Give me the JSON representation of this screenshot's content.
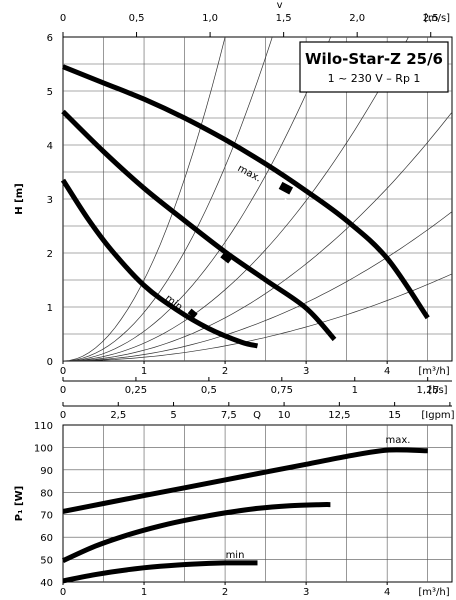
{
  "chart_data": [
    {
      "type": "line",
      "title": "Wilo-Star-Z 25/6",
      "subtitle": "1 ~ 230 V – Rp 1",
      "xlabel": "Q",
      "ylabel": "H [m]",
      "xlim": [
        0,
        4.8
      ],
      "ylim": [
        0,
        6
      ],
      "grid": true,
      "x_unit_label": "[m³/h]",
      "xticks": [
        "0",
        "1",
        "2",
        "3",
        "4"
      ],
      "yticks": [
        "0",
        "1",
        "2",
        "3",
        "4",
        "5",
        "6"
      ],
      "top_axis": {
        "symbol": "v",
        "unit_label": "[m/s]",
        "tick_labels": [
          "0",
          "0,5",
          "1,0",
          "1,5",
          "2,0",
          "2,5"
        ],
        "tick_values": [
          0,
          0.5,
          1.0,
          1.5,
          2.0,
          2.5
        ],
        "m3h_per_unit": 1.815
      },
      "secondary_axes": [
        {
          "unit_label": "[l/s]",
          "tick_labels": [
            "0",
            "0,25",
            "0,5",
            "0,75",
            "1",
            "1,25"
          ],
          "tick_values": [
            0,
            0.25,
            0.5,
            0.75,
            1,
            1.25
          ],
          "m3h_per_unit": 3.6
        },
        {
          "unit_label": "[Igpm]",
          "tick_labels": [
            "0",
            "2,5",
            "5",
            "7,5",
            "10",
            "12,5",
            "15",
            "17,5"
          ],
          "tick_values": [
            0,
            2.5,
            5,
            7.5,
            10,
            12.5,
            15,
            17.5
          ],
          "m3h_per_unit": 0.2728
        }
      ],
      "series": [
        {
          "name": "max.",
          "x": [
            0,
            0.5,
            1,
            1.5,
            2,
            2.5,
            3,
            3.5,
            4,
            4.5
          ],
          "y": [
            5.45,
            5.15,
            4.85,
            4.5,
            4.1,
            3.65,
            3.15,
            2.6,
            1.9,
            0.8
          ]
        },
        {
          "name": "",
          "x": [
            0,
            0.5,
            1,
            1.5,
            2,
            2.5,
            3,
            3.35
          ],
          "y": [
            4.62,
            3.88,
            3.2,
            2.6,
            2.02,
            1.5,
            0.98,
            0.4
          ]
        },
        {
          "name": "min",
          "x": [
            0,
            0.3,
            0.6,
            1,
            1.4,
            1.8,
            2.2,
            2.4
          ],
          "y": [
            3.35,
            2.65,
            2.05,
            1.4,
            0.95,
            0.6,
            0.35,
            0.28
          ]
        }
      ],
      "system_curves_k": [
        1.5,
        0.9,
        0.55,
        0.33,
        0.2,
        0.12,
        0.07
      ],
      "annotations": [
        "max.",
        "min"
      ]
    },
    {
      "type": "line",
      "xlabel": "",
      "ylabel": "P₁ [W]",
      "x_unit_label": "[m³/h]",
      "xlim": [
        0,
        4.8
      ],
      "ylim": [
        40,
        110
      ],
      "grid": true,
      "xticks": [
        "0",
        "1",
        "2",
        "3",
        "4"
      ],
      "yticks": [
        "40",
        "50",
        "60",
        "70",
        "80",
        "90",
        "100",
        "110"
      ],
      "series": [
        {
          "name": "max.",
          "x": [
            0,
            0.5,
            1,
            1.5,
            2,
            2.5,
            3,
            3.5,
            4,
            4.5
          ],
          "y": [
            71.5,
            75,
            78.5,
            82,
            85.5,
            89,
            92.5,
            96,
            98.8,
            98.5
          ]
        },
        {
          "name": "",
          "x": [
            0,
            0.4,
            0.8,
            1.2,
            1.6,
            2,
            2.4,
            2.8,
            3.2,
            3.3
          ],
          "y": [
            49.5,
            56,
            61,
            65,
            68.2,
            70.8,
            72.8,
            74,
            74.5,
            74.5
          ]
        },
        {
          "name": "min",
          "x": [
            0,
            0.4,
            0.8,
            1.2,
            1.6,
            2,
            2.4
          ],
          "y": [
            40.5,
            43.3,
            45.5,
            47,
            48,
            48.5,
            48.5
          ]
        }
      ],
      "annotations": [
        "max.",
        "min"
      ]
    }
  ]
}
